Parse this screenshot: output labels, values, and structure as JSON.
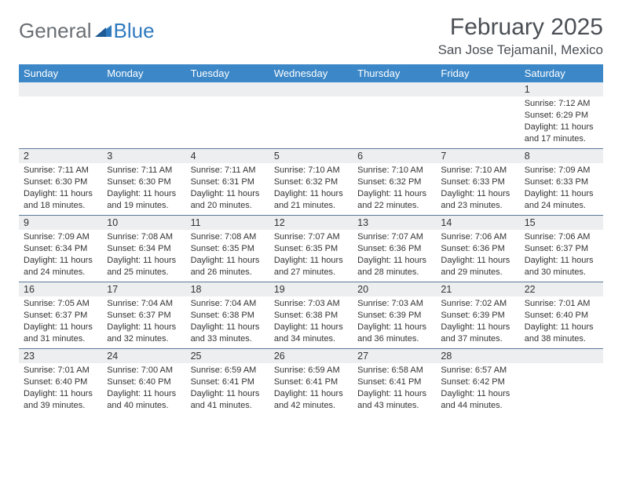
{
  "logo": {
    "part1": "General",
    "part2": "Blue"
  },
  "title": "February 2025",
  "location": "San Jose Tejamanil, Mexico",
  "colors": {
    "header_bg": "#3c87c7",
    "header_text": "#ffffff",
    "daynum_bg": "#eceeef",
    "week_divider": "#5c7a99",
    "text": "#333333",
    "logo_gray": "#6a6f74",
    "logo_blue": "#2f7abf"
  },
  "day_headers": [
    "Sunday",
    "Monday",
    "Tuesday",
    "Wednesday",
    "Thursday",
    "Friday",
    "Saturday"
  ],
  "weeks": [
    [
      {
        "blank": true
      },
      {
        "blank": true
      },
      {
        "blank": true
      },
      {
        "blank": true
      },
      {
        "blank": true
      },
      {
        "blank": true
      },
      {
        "n": "1",
        "sr": "Sunrise: 7:12 AM",
        "ss": "Sunset: 6:29 PM",
        "d1": "Daylight: 11 hours",
        "d2": "and 17 minutes."
      }
    ],
    [
      {
        "n": "2",
        "sr": "Sunrise: 7:11 AM",
        "ss": "Sunset: 6:30 PM",
        "d1": "Daylight: 11 hours",
        "d2": "and 18 minutes."
      },
      {
        "n": "3",
        "sr": "Sunrise: 7:11 AM",
        "ss": "Sunset: 6:30 PM",
        "d1": "Daylight: 11 hours",
        "d2": "and 19 minutes."
      },
      {
        "n": "4",
        "sr": "Sunrise: 7:11 AM",
        "ss": "Sunset: 6:31 PM",
        "d1": "Daylight: 11 hours",
        "d2": "and 20 minutes."
      },
      {
        "n": "5",
        "sr": "Sunrise: 7:10 AM",
        "ss": "Sunset: 6:32 PM",
        "d1": "Daylight: 11 hours",
        "d2": "and 21 minutes."
      },
      {
        "n": "6",
        "sr": "Sunrise: 7:10 AM",
        "ss": "Sunset: 6:32 PM",
        "d1": "Daylight: 11 hours",
        "d2": "and 22 minutes."
      },
      {
        "n": "7",
        "sr": "Sunrise: 7:10 AM",
        "ss": "Sunset: 6:33 PM",
        "d1": "Daylight: 11 hours",
        "d2": "and 23 minutes."
      },
      {
        "n": "8",
        "sr": "Sunrise: 7:09 AM",
        "ss": "Sunset: 6:33 PM",
        "d1": "Daylight: 11 hours",
        "d2": "and 24 minutes."
      }
    ],
    [
      {
        "n": "9",
        "sr": "Sunrise: 7:09 AM",
        "ss": "Sunset: 6:34 PM",
        "d1": "Daylight: 11 hours",
        "d2": "and 24 minutes."
      },
      {
        "n": "10",
        "sr": "Sunrise: 7:08 AM",
        "ss": "Sunset: 6:34 PM",
        "d1": "Daylight: 11 hours",
        "d2": "and 25 minutes."
      },
      {
        "n": "11",
        "sr": "Sunrise: 7:08 AM",
        "ss": "Sunset: 6:35 PM",
        "d1": "Daylight: 11 hours",
        "d2": "and 26 minutes."
      },
      {
        "n": "12",
        "sr": "Sunrise: 7:07 AM",
        "ss": "Sunset: 6:35 PM",
        "d1": "Daylight: 11 hours",
        "d2": "and 27 minutes."
      },
      {
        "n": "13",
        "sr": "Sunrise: 7:07 AM",
        "ss": "Sunset: 6:36 PM",
        "d1": "Daylight: 11 hours",
        "d2": "and 28 minutes."
      },
      {
        "n": "14",
        "sr": "Sunrise: 7:06 AM",
        "ss": "Sunset: 6:36 PM",
        "d1": "Daylight: 11 hours",
        "d2": "and 29 minutes."
      },
      {
        "n": "15",
        "sr": "Sunrise: 7:06 AM",
        "ss": "Sunset: 6:37 PM",
        "d1": "Daylight: 11 hours",
        "d2": "and 30 minutes."
      }
    ],
    [
      {
        "n": "16",
        "sr": "Sunrise: 7:05 AM",
        "ss": "Sunset: 6:37 PM",
        "d1": "Daylight: 11 hours",
        "d2": "and 31 minutes."
      },
      {
        "n": "17",
        "sr": "Sunrise: 7:04 AM",
        "ss": "Sunset: 6:37 PM",
        "d1": "Daylight: 11 hours",
        "d2": "and 32 minutes."
      },
      {
        "n": "18",
        "sr": "Sunrise: 7:04 AM",
        "ss": "Sunset: 6:38 PM",
        "d1": "Daylight: 11 hours",
        "d2": "and 33 minutes."
      },
      {
        "n": "19",
        "sr": "Sunrise: 7:03 AM",
        "ss": "Sunset: 6:38 PM",
        "d1": "Daylight: 11 hours",
        "d2": "and 34 minutes."
      },
      {
        "n": "20",
        "sr": "Sunrise: 7:03 AM",
        "ss": "Sunset: 6:39 PM",
        "d1": "Daylight: 11 hours",
        "d2": "and 36 minutes."
      },
      {
        "n": "21",
        "sr": "Sunrise: 7:02 AM",
        "ss": "Sunset: 6:39 PM",
        "d1": "Daylight: 11 hours",
        "d2": "and 37 minutes."
      },
      {
        "n": "22",
        "sr": "Sunrise: 7:01 AM",
        "ss": "Sunset: 6:40 PM",
        "d1": "Daylight: 11 hours",
        "d2": "and 38 minutes."
      }
    ],
    [
      {
        "n": "23",
        "sr": "Sunrise: 7:01 AM",
        "ss": "Sunset: 6:40 PM",
        "d1": "Daylight: 11 hours",
        "d2": "and 39 minutes."
      },
      {
        "n": "24",
        "sr": "Sunrise: 7:00 AM",
        "ss": "Sunset: 6:40 PM",
        "d1": "Daylight: 11 hours",
        "d2": "and 40 minutes."
      },
      {
        "n": "25",
        "sr": "Sunrise: 6:59 AM",
        "ss": "Sunset: 6:41 PM",
        "d1": "Daylight: 11 hours",
        "d2": "and 41 minutes."
      },
      {
        "n": "26",
        "sr": "Sunrise: 6:59 AM",
        "ss": "Sunset: 6:41 PM",
        "d1": "Daylight: 11 hours",
        "d2": "and 42 minutes."
      },
      {
        "n": "27",
        "sr": "Sunrise: 6:58 AM",
        "ss": "Sunset: 6:41 PM",
        "d1": "Daylight: 11 hours",
        "d2": "and 43 minutes."
      },
      {
        "n": "28",
        "sr": "Sunrise: 6:57 AM",
        "ss": "Sunset: 6:42 PM",
        "d1": "Daylight: 11 hours",
        "d2": "and 44 minutes."
      },
      {
        "blank": true
      }
    ]
  ]
}
